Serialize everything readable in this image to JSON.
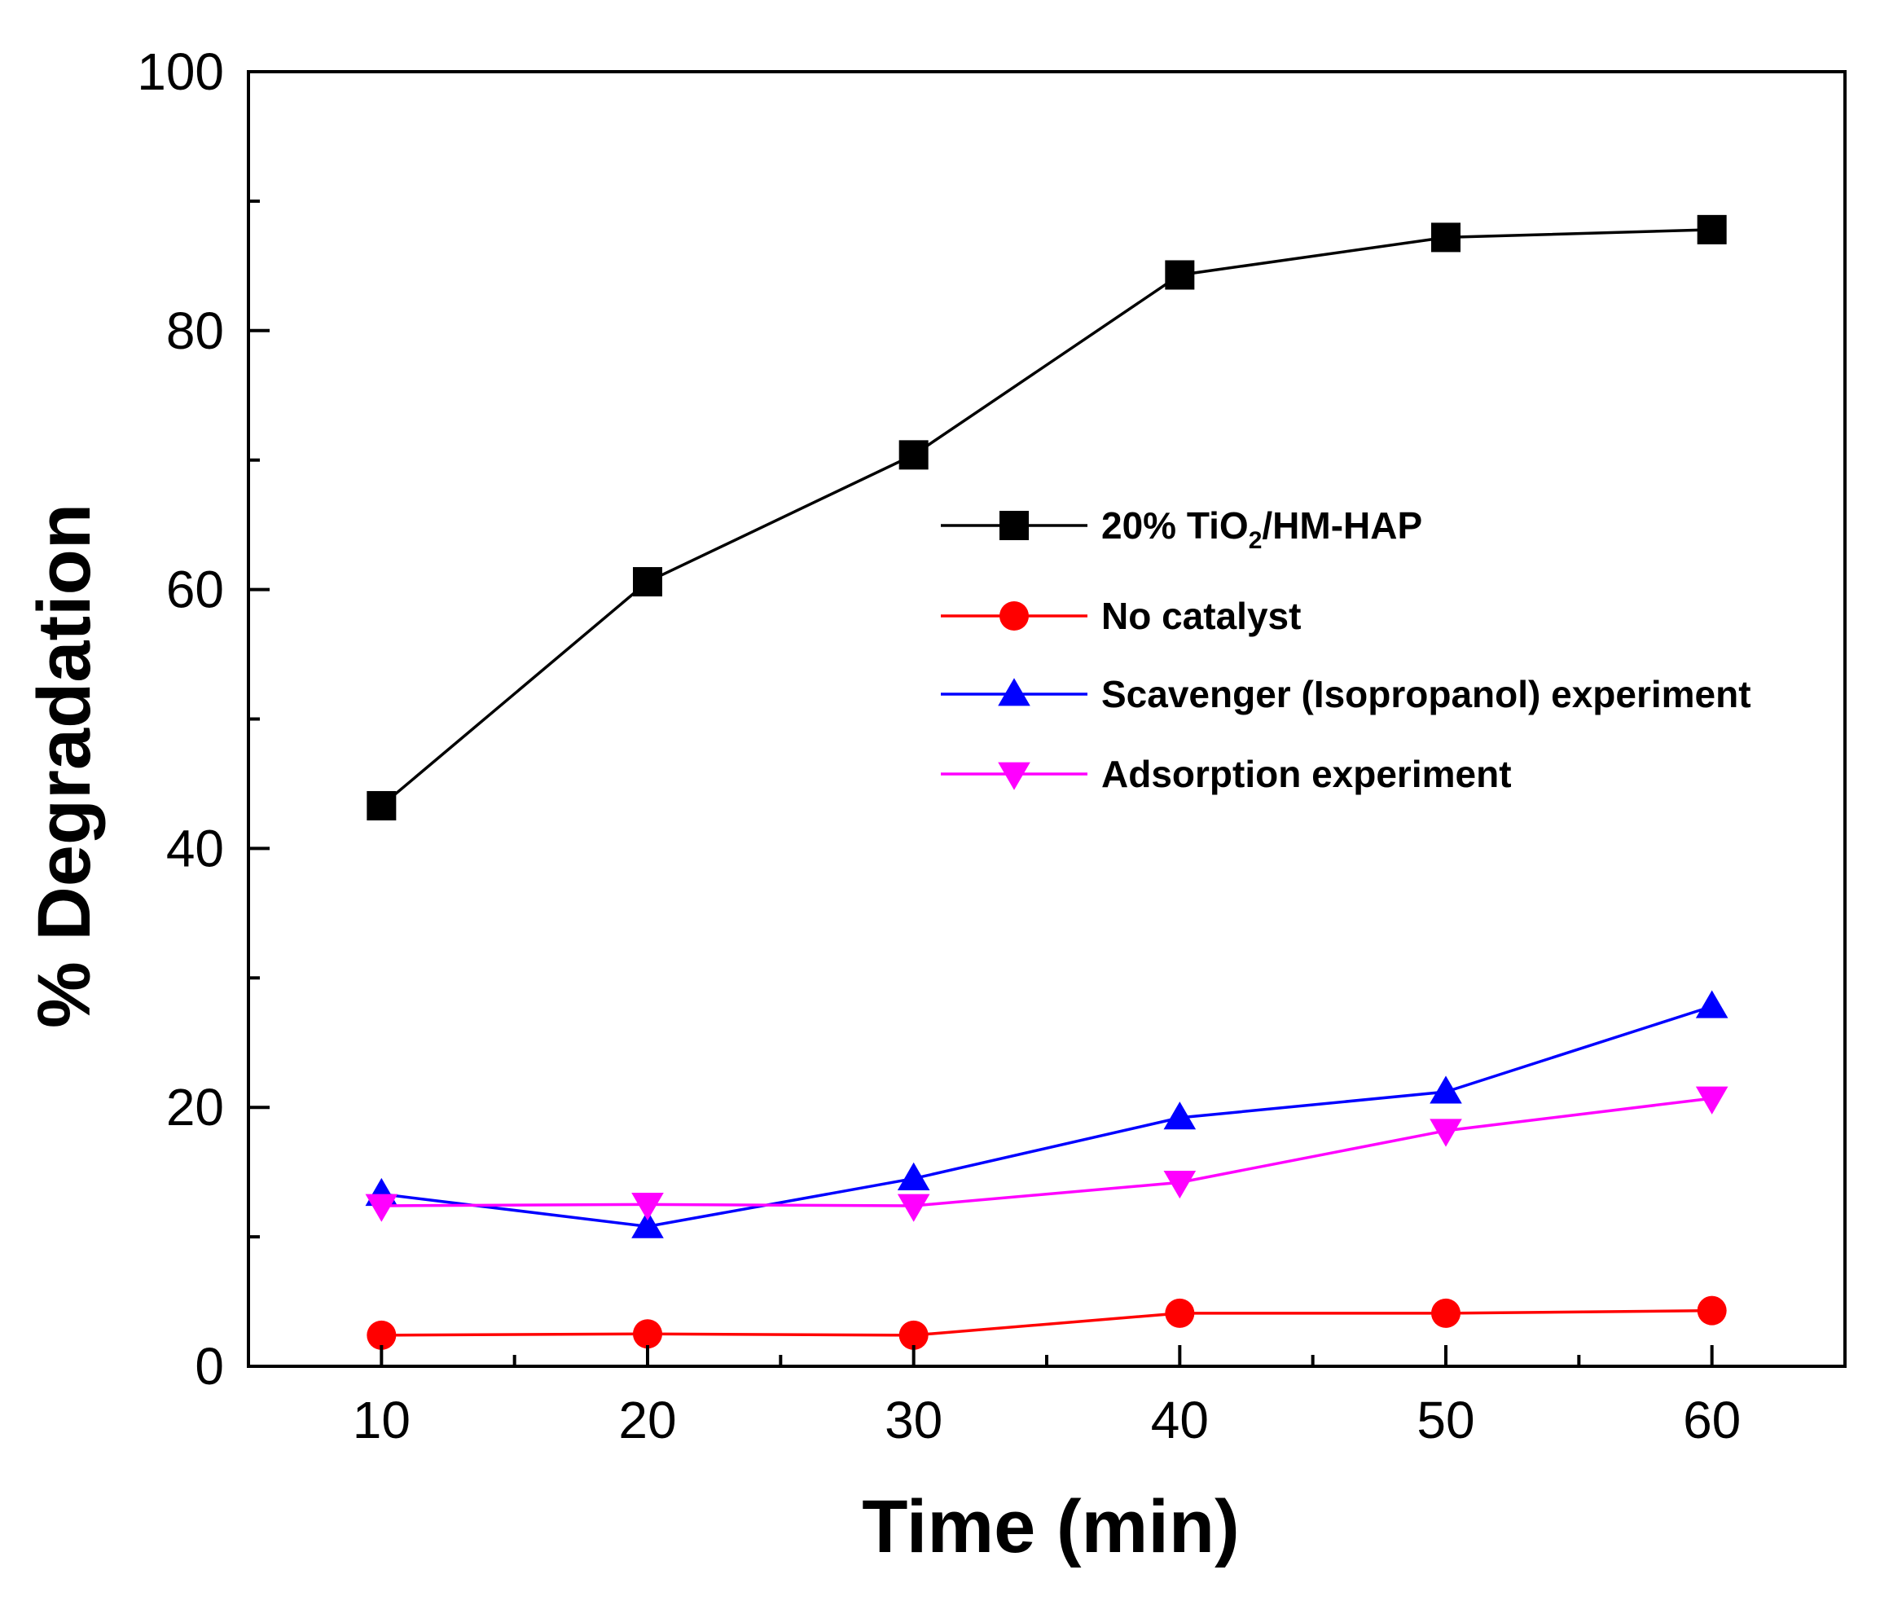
{
  "chart_data": {
    "type": "line",
    "xlabel": "Time (min)",
    "ylabel": "% Degradation",
    "xlim": [
      5,
      65
    ],
    "ylim": [
      0,
      100
    ],
    "x": [
      10,
      20,
      30,
      40,
      50,
      60
    ],
    "xticks": [
      "10",
      "20",
      "30",
      "40",
      "50",
      "60"
    ],
    "yticks": [
      "0",
      "20",
      "40",
      "60",
      "80",
      "100"
    ],
    "grid": false,
    "legend_position": "center-right",
    "series": [
      {
        "name": "20% TiO2/HM-HAP",
        "name_main": "20% TiO",
        "name_sub": "2",
        "name_rest": "/HM-HAP",
        "marker": "square",
        "color": "#000000",
        "values": [
          43.3,
          60.6,
          70.4,
          84.3,
          87.2,
          87.8
        ]
      },
      {
        "name": "No catalyst",
        "marker": "circle",
        "color": "#ff0000",
        "values": [
          2.4,
          2.5,
          2.4,
          4.1,
          4.1,
          4.3
        ]
      },
      {
        "name": "Scavenger (Isopropanol) experiment",
        "marker": "triangle-up",
        "color": "#0000ff",
        "values": [
          13.3,
          10.8,
          14.5,
          19.2,
          21.2,
          27.8
        ]
      },
      {
        "name": "Adsorption experiment",
        "marker": "triangle-down",
        "color": "#ff00ff",
        "values": [
          12.4,
          12.5,
          12.4,
          14.2,
          18.2,
          20.7
        ]
      }
    ]
  }
}
